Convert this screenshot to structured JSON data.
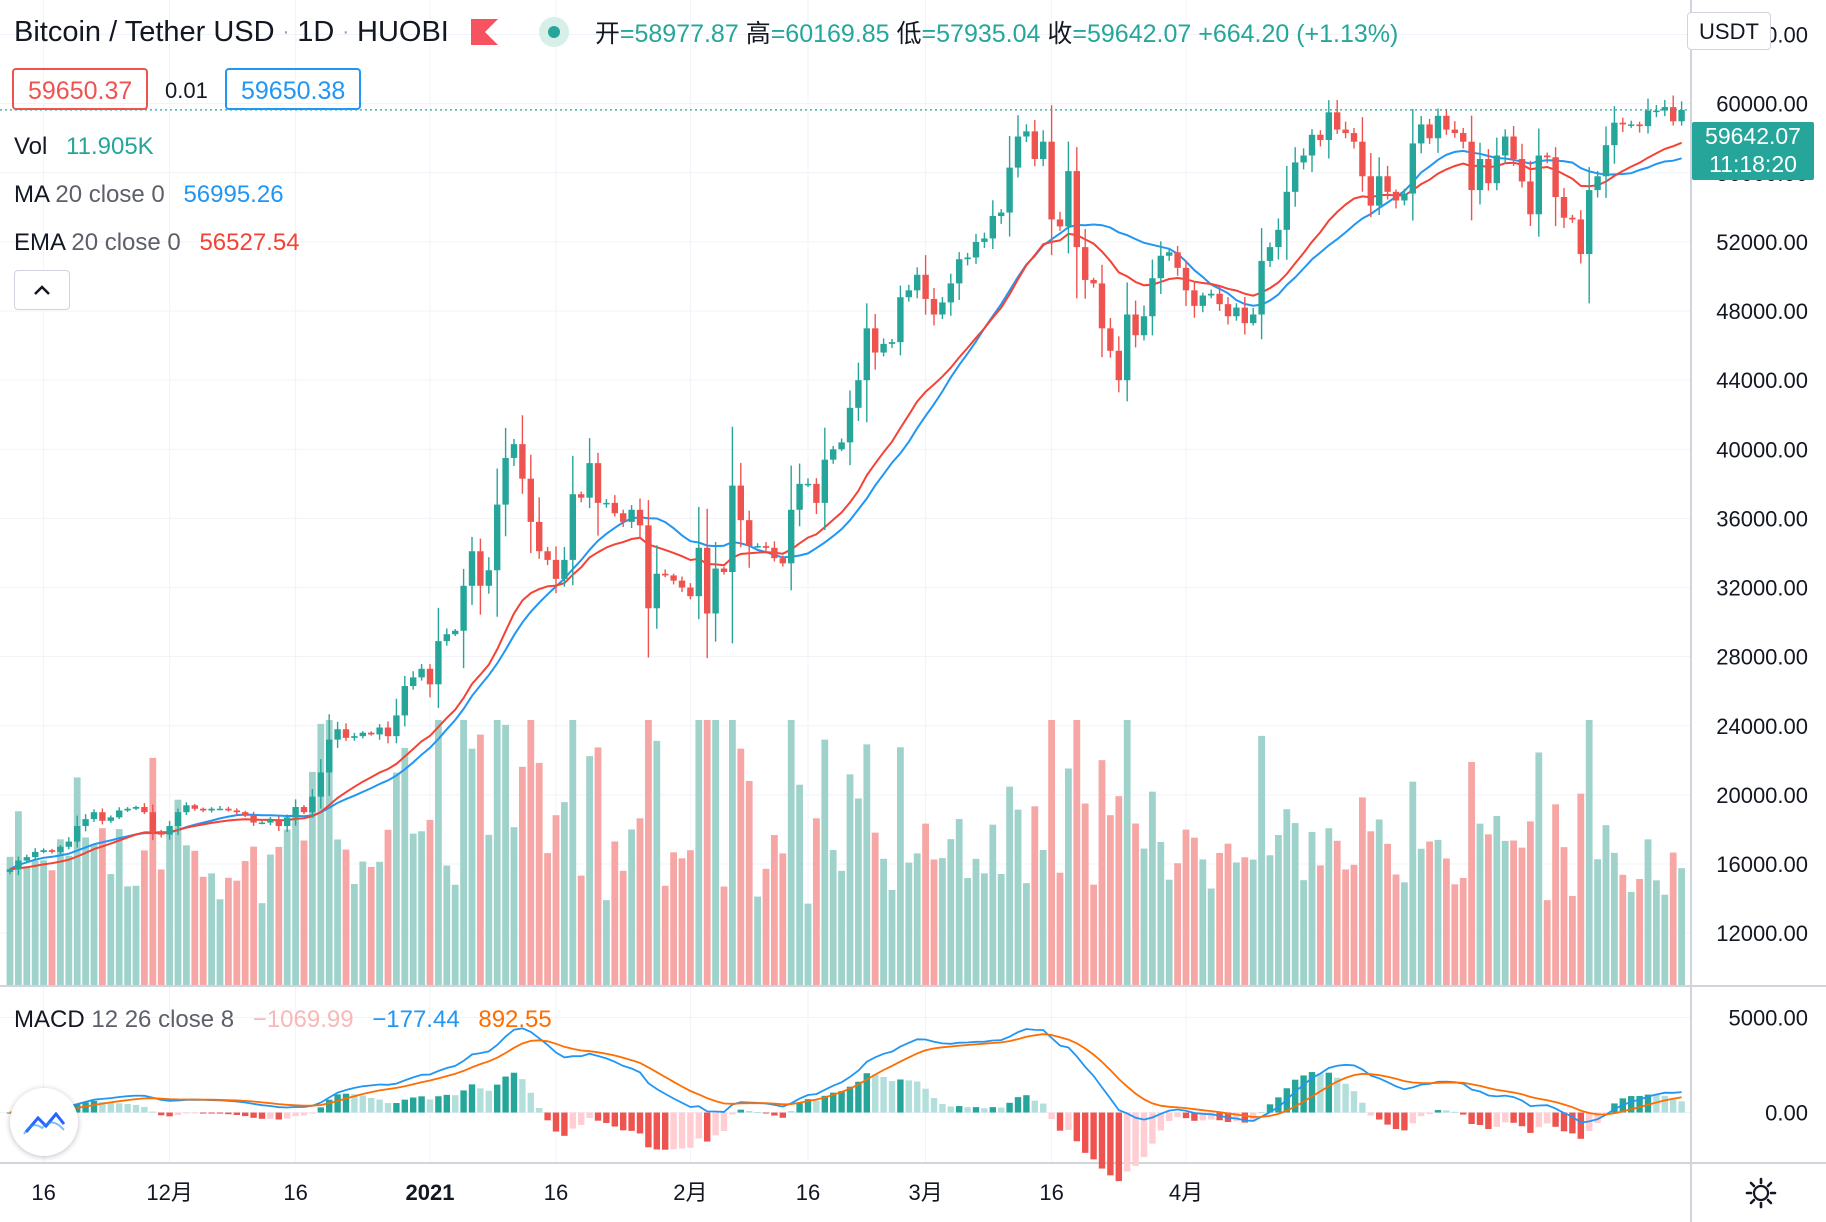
{
  "header": {
    "symbol": "Bitcoin / Tether USD",
    "interval": "1D",
    "exchange": "HUOBI",
    "open_label": "开",
    "open": "=58977.87",
    "high_label": "高",
    "high": "=60169.85",
    "low_label": "低",
    "low": "=57935.04",
    "close_label": "收",
    "close": "=59642.07",
    "change": "+664.20 (+1.13%)"
  },
  "quote": {
    "bid": "59650.37",
    "spread": "0.01",
    "ask": "59650.38"
  },
  "legend": {
    "vol_label": "Vol",
    "vol_value": "11.905K",
    "ma_label": "MA",
    "ma_params": "20 close 0",
    "ma_value": "56995.26",
    "ema_label": "EMA",
    "ema_params": "20 close 0",
    "ema_value": "56527.54",
    "macd_label": "MACD",
    "macd_params": "12 26 close 8",
    "macd_hist": "−1069.99",
    "macd_line": "−177.44",
    "macd_signal": "892.55"
  },
  "price_axis": {
    "currency": "USDT",
    "last_price": "59642.07",
    "countdown": "11:18:20"
  },
  "colors": {
    "up": "#26a69a",
    "down": "#ef5350",
    "vol_up": "#9fd2cb",
    "vol_down": "#f6a7a5",
    "ma": "#2196f3",
    "ema": "#f44336",
    "macd": "#2196f3",
    "signal": "#ff6d00",
    "hist_up_strong": "#26a69a",
    "hist_up_weak": "#b2dfdb",
    "hist_down_strong": "#ef5350",
    "hist_down_weak": "#ffcdd2",
    "grid": "#f0f3fa"
  },
  "chart_data": {
    "type": "candlestick",
    "price_ticks": [
      "64000.00",
      "60000.00",
      "56000.00",
      "52000.00",
      "48000.00",
      "44000.00",
      "40000.00",
      "36000.00",
      "32000.00",
      "28000.00",
      "24000.00",
      "20000.00",
      "16000.00",
      "12000.00"
    ],
    "price_tick_values": [
      64000,
      60000,
      56000,
      52000,
      48000,
      44000,
      40000,
      36000,
      32000,
      28000,
      24000,
      20000,
      16000,
      12000
    ],
    "price_range": [
      9000,
      66000
    ],
    "macd_ticks": [
      "5000.00",
      "0.00"
    ],
    "macd_tick_values": [
      5000,
      0
    ],
    "macd_range": [
      -2600,
      6600
    ],
    "x_labels": [
      {
        "label": "16",
        "index": 4
      },
      {
        "label": "12月",
        "index": 19
      },
      {
        "label": "16",
        "index": 34
      },
      {
        "label": "2021",
        "index": 50
      },
      {
        "label": "16",
        "index": 65
      },
      {
        "label": "2月",
        "index": 81
      },
      {
        "label": "16",
        "index": 95
      },
      {
        "label": "3月",
        "index": 109
      },
      {
        "label": "16",
        "index": 124
      },
      {
        "label": "4月",
        "index": 140
      }
    ],
    "closes": [
      15700,
      16200,
      16400,
      16700,
      16800,
      16700,
      17000,
      17300,
      18200,
      18600,
      19000,
      18500,
      18700,
      19100,
      19200,
      19300,
      19000,
      17900,
      17700,
      18200,
      19000,
      19400,
      19200,
      19100,
      19200,
      19200,
      19100,
      19000,
      18800,
      18400,
      18400,
      18600,
      18200,
      18700,
      19300,
      19000,
      19900,
      21300,
      23200,
      23800,
      23300,
      23400,
      23600,
      23500,
      23900,
      23400,
      24600,
      26300,
      26800,
      27300,
      26400,
      28900,
      29300,
      29500,
      32100,
      34100,
      32100,
      33000,
      36800,
      39500,
      40300,
      38300,
      35800,
      34100,
      33600,
      32500,
      33600,
      37400,
      37200,
      39200,
      36900,
      36900,
      36300,
      35800,
      36500,
      35600,
      30800,
      32800,
      32700,
      32400,
      32000,
      31500,
      34300,
      30500,
      33100,
      32900,
      37900,
      35900,
      34400,
      34400,
      34300,
      33700,
      33400,
      36500,
      38000,
      38000,
      36900,
      39400,
      40000,
      40400,
      42400,
      44000,
      47000,
      45600,
      46100,
      46200,
      48800,
      49200,
      50100,
      48700,
      47800,
      48500,
      49600,
      51000,
      51100,
      52000,
      52200,
      53500,
      53700,
      56300,
      58100,
      58400,
      56800,
      57800,
      53300,
      52900,
      56100,
      51700,
      49800,
      49600,
      47000,
      45700,
      44000,
      47800,
      46600,
      47700,
      49900,
      51200,
      51400,
      50500,
      49200,
      48300,
      48900,
      49000,
      48400,
      47700,
      48200,
      47300,
      47800,
      50900,
      51700,
      52700,
      54900,
      56600,
      57000,
      58200,
      57900,
      59500,
      58500,
      58300,
      57800,
      55800,
      54100,
      55800,
      54900,
      54400,
      54800,
      57700,
      58800,
      58000,
      59300,
      58500,
      58300,
      57800,
      55000,
      56800,
      55400,
      57000,
      58100,
      56800,
      55500,
      53600,
      57000,
      56900,
      54600,
      53400,
      53300,
      51300,
      55000,
      55800,
      57600,
      58900,
      58800,
      58800,
      58700,
      59600,
      59600,
      59800,
      58980,
      59642
    ],
    "volume_max": 24000,
    "macd_line_note": "MACD line (blue) and signal (orange) estimated from figure"
  }
}
